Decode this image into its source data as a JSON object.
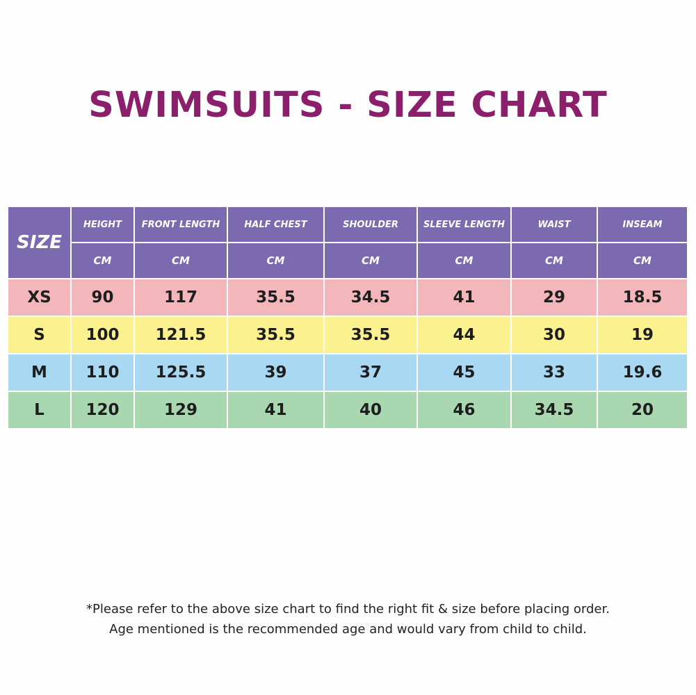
{
  "title": "SWIMSUITS - SIZE CHART",
  "size_header": "SIZE",
  "columns": [
    {
      "label": "HEIGHT",
      "unit": "CM"
    },
    {
      "label": "FRONT LENGTH",
      "unit": "CM"
    },
    {
      "label": "HALF CHEST",
      "unit": "CM"
    },
    {
      "label": "SHOULDER",
      "unit": "CM"
    },
    {
      "label": "SLEEVE LENGTH",
      "unit": "CM"
    },
    {
      "label": "WAIST",
      "unit": "CM"
    },
    {
      "label": "INSEAM",
      "unit": "CM"
    }
  ],
  "rows": [
    {
      "size": "XS",
      "values": [
        "90",
        "117",
        "35.5",
        "34.5",
        "41",
        "29",
        "18.5"
      ],
      "color": "#f3b7bb"
    },
    {
      "size": "S",
      "values": [
        "100",
        "121.5",
        "35.5",
        "35.5",
        "44",
        "30",
        "19"
      ],
      "color": "#fbf18e"
    },
    {
      "size": "M",
      "values": [
        "110",
        "125.5",
        "39",
        "37",
        "45",
        "33",
        "19.6"
      ],
      "color": "#a9d8f2"
    },
    {
      "size": "L",
      "values": [
        "120",
        "129",
        "41",
        "40",
        "46",
        "34.5",
        "20"
      ],
      "color": "#a9d8b0"
    }
  ],
  "header_color": "#7b6aaf",
  "title_color": "#8c1f6c",
  "notes": [
    "*Please refer to the above size chart to find the right fit & size before placing order.",
    "Age mentioned is the recommended age and would vary from child to child."
  ]
}
